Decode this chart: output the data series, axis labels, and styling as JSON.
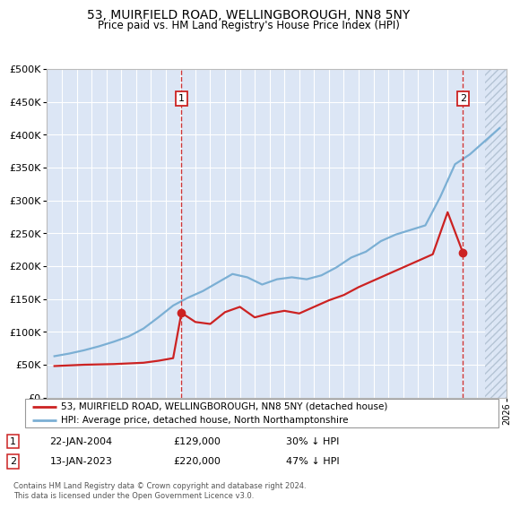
{
  "title": "53, MUIRFIELD ROAD, WELLINGBOROUGH, NN8 5NY",
  "subtitle": "Price paid vs. HM Land Registry's House Price Index (HPI)",
  "legend_line1": "53, MUIRFIELD ROAD, WELLINGBOROUGH, NN8 5NY (detached house)",
  "legend_line2": "HPI: Average price, detached house, North Northamptonshire",
  "annotation1_label": "1",
  "annotation1_date": "22-JAN-2004",
  "annotation1_price": "£129,000",
  "annotation1_hpi": "30% ↓ HPI",
  "annotation1_year": 2004.06,
  "annotation1_value": 129000,
  "annotation2_label": "2",
  "annotation2_date": "13-JAN-2023",
  "annotation2_price": "£220,000",
  "annotation2_hpi": "47% ↓ HPI",
  "annotation2_year": 2023.04,
  "annotation2_value": 220000,
  "footer": "Contains HM Land Registry data © Crown copyright and database right 2024.\nThis data is licensed under the Open Government Licence v3.0.",
  "bg_color": "#dce6f5",
  "hpi_color": "#7bafd4",
  "price_color": "#cc2222",
  "grid_color": "#ffffff",
  "ylim_min": 0,
  "ylim_max": 500000,
  "ytick_step": 50000,
  "xmin": 1995,
  "xmax": 2026,
  "hatch_start": 2024.5,
  "hpi_data_years": [
    1995.5,
    1996.5,
    1997.5,
    1998.5,
    1999.5,
    2000.5,
    2001.5,
    2002.5,
    2003.5,
    2004.5,
    2005.5,
    2006.5,
    2007.5,
    2008.5,
    2009.5,
    2010.5,
    2011.5,
    2012.5,
    2013.5,
    2014.5,
    2015.5,
    2016.5,
    2017.5,
    2018.5,
    2019.5,
    2020.5,
    2021.5,
    2022.5,
    2023.5,
    2024.5,
    2025.5
  ],
  "hpi_data_values": [
    63000,
    67000,
    72000,
    78000,
    85000,
    93000,
    105000,
    122000,
    140000,
    152000,
    162000,
    175000,
    188000,
    183000,
    172000,
    180000,
    183000,
    180000,
    186000,
    198000,
    213000,
    222000,
    238000,
    248000,
    255000,
    262000,
    305000,
    355000,
    370000,
    390000,
    410000
  ],
  "price_data_years": [
    1995.5,
    1996.5,
    1997.5,
    1998.5,
    1999.5,
    2000.5,
    2001.5,
    2002.5,
    2003.5,
    2004.06,
    2005.0,
    2006.0,
    2007.0,
    2008.0,
    2009.0,
    2010.0,
    2011.0,
    2012.0,
    2013.0,
    2014.0,
    2015.0,
    2016.0,
    2017.0,
    2018.0,
    2019.0,
    2020.0,
    2021.0,
    2022.0,
    2023.04
  ],
  "price_data_values": [
    48000,
    49000,
    50000,
    50500,
    51000,
    52000,
    53000,
    56000,
    60000,
    129000,
    115000,
    112000,
    130000,
    138000,
    122000,
    128000,
    132000,
    128000,
    138000,
    148000,
    156000,
    168000,
    178000,
    188000,
    198000,
    208000,
    218000,
    282000,
    220000
  ]
}
